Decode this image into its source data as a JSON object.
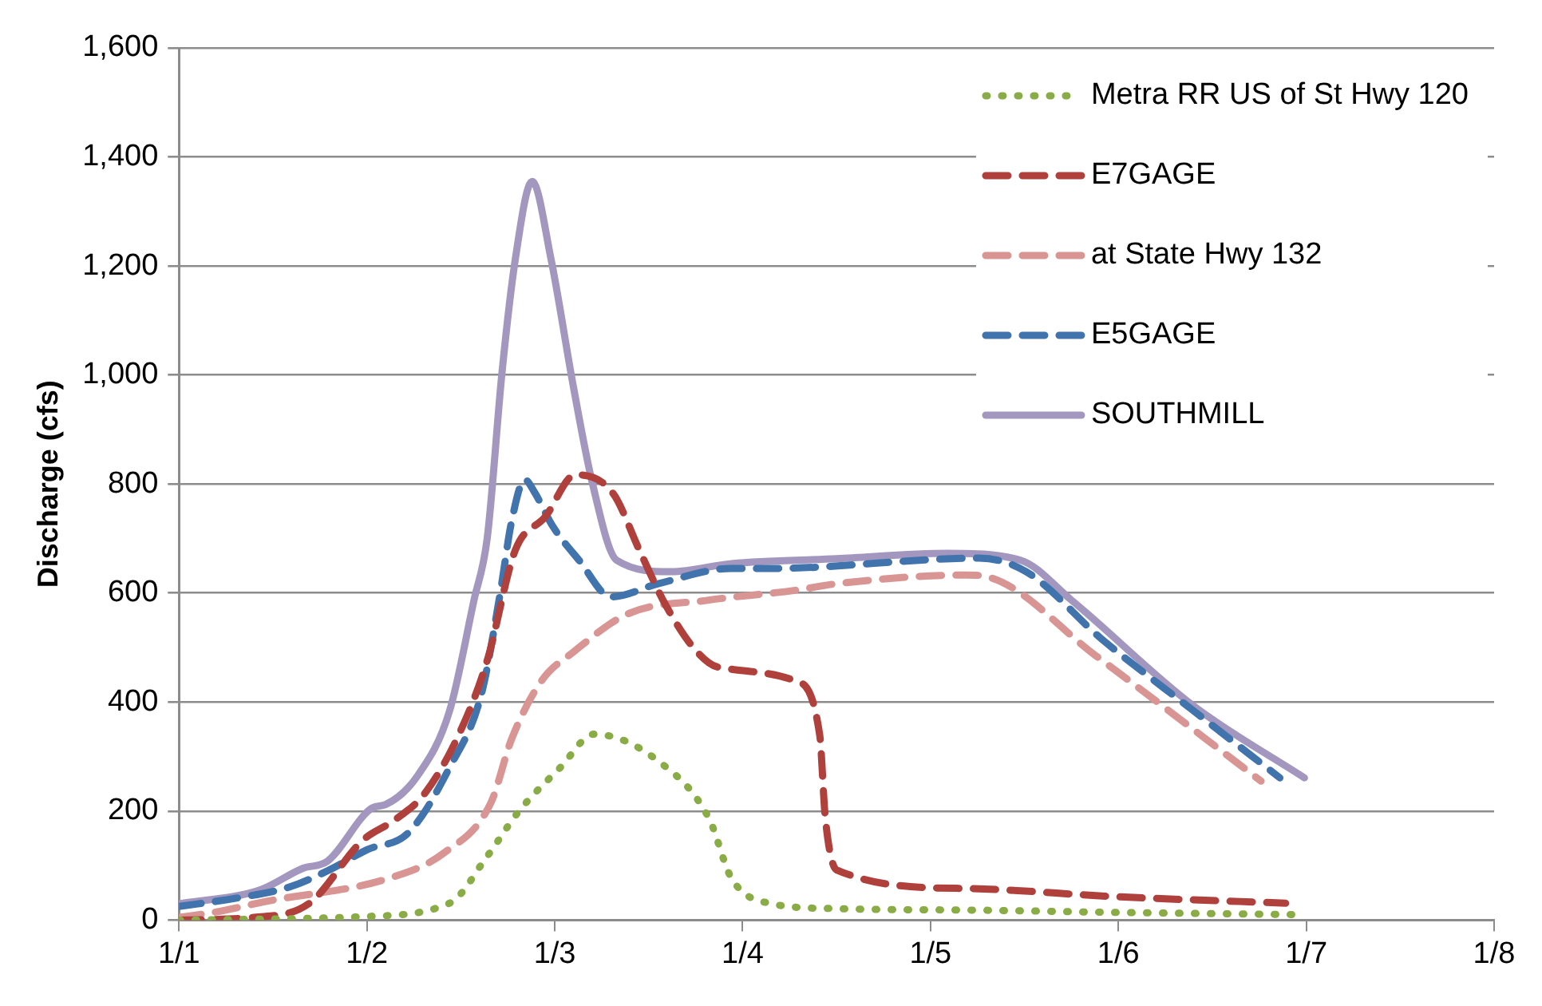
{
  "chart_data": {
    "type": "line",
    "ylabel": "Discharge (cfs)",
    "xlim": [
      "--01-01",
      "--01-08"
    ],
    "xticks": [
      {
        "value": "--01-01",
        "label": "1/1"
      },
      {
        "value": "--01-02",
        "label": "1/2"
      },
      {
        "value": "--01-03",
        "label": "1/3"
      },
      {
        "value": "--01-04",
        "label": "1/4"
      },
      {
        "value": "--01-05",
        "label": "1/5"
      },
      {
        "value": "--01-06",
        "label": "1/6"
      },
      {
        "value": "--01-07",
        "label": "1/7"
      },
      {
        "value": "--01-08",
        "label": "1/8"
      }
    ],
    "ylim": [
      0,
      1600
    ],
    "yticks": [
      0,
      200,
      400,
      600,
      800,
      {
        "value": 1000,
        "label": "1,000"
      },
      {
        "value": 1200,
        "label": "1,200"
      },
      {
        "value": 1400,
        "label": "1,400"
      },
      {
        "value": 1600,
        "label": "1,600"
      }
    ],
    "grid": "y",
    "legend": "top right",
    "marker": "none",
    "series": [
      {
        "name": "Metra RR US of St Hwy 120",
        "color": "#8aac46",
        "line_style": "dotted",
        "x": [
          "--01-01T00:00",
          "--01-01T12:00",
          "--01-01T22:48",
          "--01-02T10:34",
          "--01-02T15:22",
          "--01-02T19:26",
          "--01-03T00:43",
          "--01-03T05:02",
          "--01-03T13:12",
          "--01-03T19:41",
          "--01-03T22:34",
          "--01-04T03:22",
          "--01-04T12:00",
          "--01-05T07:12",
          "--01-06T00:00",
          "--01-06T23:17"
        ],
        "values": [
          0,
          2,
          6,
          31,
          117,
          200,
          280,
          341,
          292,
          187,
          77,
          31,
          21,
          18,
          14,
          10
        ]
      },
      {
        "name": "E7GAGE",
        "color": "#b0403c",
        "line_style": "dashed",
        "x": [
          "--01-01T00:00",
          "--01-01T09:36",
          "--01-01T16:34",
          "--01-01T23:31",
          "--01-02T03:36",
          "--01-02T07:26",
          "--01-02T11:46",
          "--01-02T15:22",
          "--01-02T18:58",
          "--01-02T22:48",
          "--01-03T02:38",
          "--01-03T07:26",
          "--01-03T10:48",
          "--01-03T14:10",
          "--01-03T18:00",
          "--01-03T20:53",
          "--01-04T06:43",
          "--01-04T09:50",
          "--01-04T10:34",
          "--01-04T12:00",
          "--01-05T04:34",
          "--01-05T23:31",
          "--01-06T21:22"
        ],
        "values": [
          0,
          5,
          30,
          147,
          184,
          233,
          341,
          476,
          679,
          740,
          817,
          783,
          679,
          578,
          495,
          464,
          439,
          341,
          187,
          92,
          58,
          43,
          31
        ]
      },
      {
        "name": "at State Hwy 132",
        "color": "#d99594",
        "line_style": "dashed",
        "x": [
          "--01-01T00:00",
          "--01-01T04:48",
          "--01-01T11:02",
          "--01-02T02:53",
          "--01-02T09:50",
          "--01-02T15:50",
          "--01-02T18:29",
          "--01-02T22:19",
          "--01-03T02:24",
          "--01-03T09:22",
          "--01-03T19:41",
          "--01-04T06:43",
          "--01-04T12:00",
          "--01-05T04:34",
          "--01-05T07:12",
          "--01-05T21:07",
          "--01-06T18:14"
        ],
        "values": [
          5,
          15,
          34,
          77,
          123,
          215,
          332,
          439,
          492,
          562,
          587,
          605,
          617,
          633,
          630,
          485,
          255
        ]
      },
      {
        "name": "E5GAGE",
        "color": "#4173ad",
        "line_style": "dashed",
        "x": [
          "--01-01T00:00",
          "--01-01T07:12",
          "--01-01T14:10",
          "--01-01T19:12",
          "--01-02T00:00",
          "--01-02T05:17",
          "--01-02T10:34",
          "--01-02T14:38",
          "--01-02T17:02",
          "--01-02T18:29",
          "--01-02T20:10",
          "--01-02T21:22",
          "--01-02T23:46",
          "--01-03T03:07",
          "--01-03T07:12",
          "--01-03T13:12",
          "--01-03T22:34",
          "--01-04T03:22",
          "--01-05T06:14",
          "--01-05T12:14",
          "--01-05T21:50",
          "--01-06T09:36",
          "--01-06T20:38"
        ],
        "values": [
          25,
          40,
          61,
          92,
          129,
          160,
          280,
          415,
          600,
          731,
          808,
          786,
          722,
          660,
          593,
          617,
          645,
          645,
          664,
          639,
          516,
          384,
          261
        ]
      },
      {
        "name": "SOUTHMILL",
        "color": "#a397c0",
        "line_style": "solid",
        "x": [
          "--01-01T00:00",
          "--01-01T10:19",
          "--01-01T15:50",
          "--01-01T18:58",
          "--01-02T00:43",
          "--01-02T02:24",
          "--01-02T06:29",
          "--01-02T10:34",
          "--01-02T13:41",
          "--01-02T15:22",
          "--01-02T17:17",
          "--01-02T18:58",
          "--01-02T21:07",
          "--01-02T23:31",
          "--01-03T02:24",
          "--01-03T04:48",
          "--01-03T07:55",
          "--01-03T14:53",
          "--01-03T22:34",
          "--01-04T12:00",
          "--01-05T02:10",
          "--01-05T11:31",
          "--01-05T18:00",
          "--01-06T09:36",
          "--01-06T23:46"
        ],
        "values": [
          30,
          55,
          95,
          108,
          206,
          212,
          265,
          384,
          587,
          700,
          1008,
          1213,
          1355,
          1213,
          977,
          802,
          660,
          639,
          654,
          663,
          673,
          660,
          587,
          393,
          261
        ]
      }
    ]
  }
}
